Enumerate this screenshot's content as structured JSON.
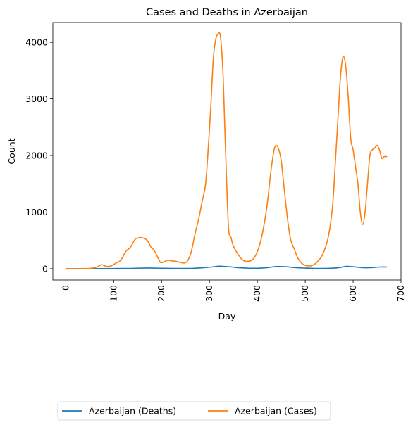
{
  "chart_data": {
    "type": "line",
    "title": "Cases and Deaths in Azerbaijan",
    "xlabel": "Day",
    "ylabel": "Count",
    "xlim": [
      -27,
      700
    ],
    "ylim": [
      -200,
      4350
    ],
    "xticks": [
      0,
      100,
      200,
      300,
      400,
      500,
      600,
      700
    ],
    "yticks": [
      0,
      1000,
      2000,
      3000,
      4000
    ],
    "grid": false,
    "legend_position": "bottom, below plot",
    "series": [
      {
        "name": "Azerbaijan (Deaths)",
        "color": "#1f77b4",
        "x": [
          0,
          50,
          100,
          130,
          170,
          200,
          230,
          260,
          290,
          310,
          320,
          340,
          360,
          380,
          400,
          420,
          440,
          460,
          480,
          500,
          520,
          540,
          560,
          575,
          585,
          600,
          620,
          640,
          655,
          670
        ],
        "y": [
          0,
          0,
          3,
          5,
          12,
          8,
          5,
          5,
          20,
          35,
          45,
          35,
          18,
          10,
          8,
          18,
          38,
          35,
          18,
          10,
          5,
          5,
          10,
          25,
          42,
          35,
          18,
          20,
          30,
          30
        ]
      },
      {
        "name": "Azerbaijan (Cases)",
        "color": "#ff7f0e",
        "x": [
          0,
          20,
          40,
          55,
          65,
          75,
          85,
          95,
          105,
          115,
          125,
          135,
          145,
          155,
          162,
          170,
          178,
          185,
          192,
          198,
          205,
          212,
          220,
          230,
          240,
          248,
          255,
          262,
          270,
          278,
          285,
          292,
          298,
          303,
          308,
          313,
          318,
          323,
          328,
          332,
          336,
          340,
          345,
          350,
          360,
          370,
          380,
          390,
          400,
          410,
          420,
          428,
          435,
          440,
          445,
          450,
          455,
          460,
          465,
          470,
          477,
          485,
          495,
          505,
          515,
          525,
          535,
          545,
          552,
          558,
          563,
          568,
          572,
          576,
          580,
          585,
          590,
          595,
          600,
          605,
          610,
          615,
          620,
          625,
          630,
          635,
          640,
          645,
          650,
          655,
          660,
          665,
          670
        ],
        "y": [
          0,
          0,
          2,
          10,
          30,
          70,
          40,
          50,
          100,
          150,
          300,
          380,
          520,
          550,
          540,
          500,
          380,
          320,
          200,
          110,
          120,
          150,
          140,
          130,
          110,
          100,
          150,
          300,
          620,
          900,
          1200,
          1500,
          2200,
          2900,
          3700,
          4050,
          4150,
          4100,
          3500,
          2500,
          1500,
          700,
          550,
          400,
          250,
          150,
          130,
          160,
          300,
          600,
          1100,
          1700,
          2100,
          2180,
          2100,
          1900,
          1500,
          1100,
          750,
          500,
          350,
          180,
          80,
          50,
          60,
          120,
          230,
          450,
          750,
          1200,
          1900,
          2600,
          3200,
          3600,
          3750,
          3550,
          3000,
          2300,
          2100,
          1800,
          1500,
          1000,
          780,
          1000,
          1500,
          2000,
          2100,
          2130,
          2180,
          2100,
          1950,
          1980,
          1980
        ]
      }
    ]
  }
}
